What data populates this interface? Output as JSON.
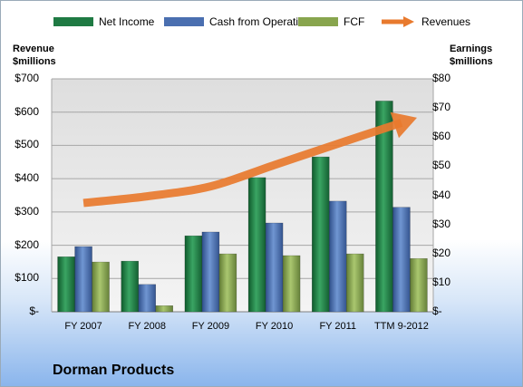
{
  "company_title": "Dorman Products",
  "legend": [
    {
      "label": "Net Income",
      "color": "#1f7a43",
      "kind": "bar"
    },
    {
      "label": "Cash from Operations",
      "color": "#4a6fb0",
      "kind": "bar"
    },
    {
      "label": "FCF",
      "color": "#88a54e",
      "kind": "bar"
    },
    {
      "label": "Revenues",
      "color": "#e87a2e",
      "kind": "arrow"
    }
  ],
  "left_axis_title": [
    "Revenue",
    "$millions"
  ],
  "right_axis_title": [
    "Earnings",
    "$millions"
  ],
  "chart_data": {
    "type": "bar",
    "categories": [
      "FY 2007",
      "FY 2008",
      "FY 2009",
      "FY 2010",
      "FY 2011",
      "TTM 9-2012"
    ],
    "left_axis": {
      "label": "Revenue $millions",
      "ylim": [
        0,
        700
      ],
      "ticks": [
        0,
        100,
        200,
        300,
        400,
        500,
        600,
        700
      ],
      "tick_labels": [
        "$-",
        "$100",
        "$200",
        "$300",
        "$400",
        "$500",
        "$600",
        "$700"
      ]
    },
    "right_axis": {
      "label": "Earnings $millions",
      "ylim": [
        0,
        80
      ],
      "ticks": [
        0,
        10,
        20,
        30,
        40,
        50,
        60,
        70,
        80
      ],
      "tick_labels": [
        "$-",
        "$10",
        "$20",
        "$30",
        "$40",
        "$50",
        "$60",
        "$70",
        "$80"
      ]
    },
    "series": [
      {
        "name": "Net Income",
        "axis": "right",
        "type": "bar",
        "color": "#1f7a43",
        "values": [
          18.9,
          17.4,
          26.1,
          46.1,
          53.2,
          72.4
        ]
      },
      {
        "name": "Cash from Operations",
        "axis": "right",
        "type": "bar",
        "color": "#4a6fb0",
        "values": [
          22.4,
          9.4,
          27.4,
          30.5,
          38.0,
          35.9
        ]
      },
      {
        "name": "FCF",
        "axis": "right",
        "type": "bar",
        "color": "#88a54e",
        "values": [
          17.1,
          2.1,
          19.9,
          19.3,
          19.9,
          18.3
        ]
      },
      {
        "name": "Revenues",
        "axis": "left",
        "type": "line",
        "color": "#e87a2e",
        "values": [
          327,
          347,
          377,
          441,
          505,
          568
        ]
      }
    ],
    "grid": true,
    "legend_position": "top"
  }
}
